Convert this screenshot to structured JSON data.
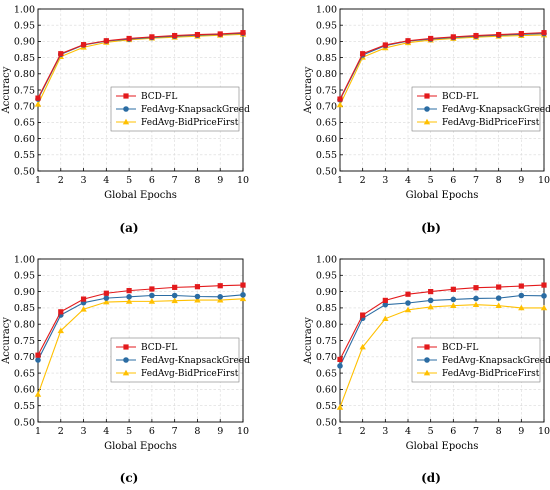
{
  "colors": {
    "BCD-FL": "#e31a1c",
    "FedAvg-KnapsackGreed": "#2b6ca3",
    "FedAvg-BidPriceFirst": "#ffc000"
  },
  "marker_shapes": {
    "BCD-FL": "square",
    "FedAvg-KnapsackGreed": "circle",
    "FedAvg-BidPriceFirst": "triangle"
  },
  "chart_data": [
    {
      "panel": "(a)",
      "type": "line",
      "xlabel": "Global Epochs",
      "ylabel": "Accuracy",
      "xlim": [
        1,
        10
      ],
      "ylim": [
        0.5,
        1.0
      ],
      "x": [
        1,
        2,
        3,
        4,
        5,
        6,
        7,
        8,
        9,
        10
      ],
      "x_ticks": [
        "1",
        "2",
        "3",
        "4",
        "5",
        "6",
        "7",
        "8",
        "9",
        "10"
      ],
      "y_ticks": [
        "0.50",
        "0.55",
        "0.60",
        "0.65",
        "0.70",
        "0.75",
        "0.80",
        "0.85",
        "0.90",
        "0.95",
        "1.00"
      ],
      "grid": true,
      "legend_position": "bottom-right",
      "series": [
        {
          "name": "BCD-FL",
          "values": [
            0.725,
            0.862,
            0.89,
            0.902,
            0.909,
            0.914,
            0.918,
            0.921,
            0.923,
            0.927
          ]
        },
        {
          "name": "FedAvg-KnapsackGreed",
          "values": [
            0.722,
            0.86,
            0.889,
            0.901,
            0.907,
            0.912,
            0.916,
            0.919,
            0.922,
            0.925
          ]
        },
        {
          "name": "FedAvg-BidPriceFirst",
          "values": [
            0.706,
            0.853,
            0.882,
            0.897,
            0.905,
            0.91,
            0.913,
            0.916,
            0.919,
            0.922
          ]
        }
      ]
    },
    {
      "panel": "(b)",
      "type": "line",
      "xlabel": "Global Epochs",
      "ylabel": "Accuracy",
      "xlim": [
        1,
        10
      ],
      "ylim": [
        0.5,
        1.0
      ],
      "x": [
        1,
        2,
        3,
        4,
        5,
        6,
        7,
        8,
        9,
        10
      ],
      "x_ticks": [
        "1",
        "2",
        "3",
        "4",
        "5",
        "6",
        "7",
        "8",
        "9",
        "10"
      ],
      "y_ticks": [
        "0.50",
        "0.55",
        "0.60",
        "0.65",
        "0.70",
        "0.75",
        "0.80",
        "0.85",
        "0.90",
        "0.95",
        "1.00"
      ],
      "grid": true,
      "legend_position": "bottom-right",
      "series": [
        {
          "name": "BCD-FL",
          "values": [
            0.722,
            0.862,
            0.889,
            0.902,
            0.909,
            0.914,
            0.918,
            0.921,
            0.924,
            0.927
          ]
        },
        {
          "name": "FedAvg-KnapsackGreed",
          "values": [
            0.72,
            0.858,
            0.887,
            0.901,
            0.907,
            0.912,
            0.916,
            0.919,
            0.922,
            0.924
          ]
        },
        {
          "name": "FedAvg-BidPriceFirst",
          "values": [
            0.704,
            0.851,
            0.88,
            0.896,
            0.904,
            0.909,
            0.913,
            0.916,
            0.918,
            0.92
          ]
        }
      ]
    },
    {
      "panel": "(c)",
      "type": "line",
      "xlabel": "Global Epochs",
      "ylabel": "Accuracy",
      "xlim": [
        1,
        10
      ],
      "ylim": [
        0.5,
        1.0
      ],
      "x": [
        1,
        2,
        3,
        4,
        5,
        6,
        7,
        8,
        9,
        10
      ],
      "x_ticks": [
        "1",
        "2",
        "3",
        "4",
        "5",
        "6",
        "7",
        "8",
        "9",
        "10"
      ],
      "y_ticks": [
        "0.50",
        "0.55",
        "0.60",
        "0.65",
        "0.70",
        "0.75",
        "0.80",
        "0.85",
        "0.90",
        "0.95",
        "1.00"
      ],
      "grid": true,
      "legend_position": "bottom-right",
      "series": [
        {
          "name": "BCD-FL",
          "values": [
            0.705,
            0.838,
            0.877,
            0.895,
            0.903,
            0.908,
            0.913,
            0.915,
            0.918,
            0.92
          ]
        },
        {
          "name": "FedAvg-KnapsackGreed",
          "values": [
            0.69,
            0.828,
            0.866,
            0.88,
            0.884,
            0.888,
            0.888,
            0.885,
            0.884,
            0.89
          ]
        },
        {
          "name": "FedAvg-BidPriceFirst",
          "values": [
            0.585,
            0.78,
            0.846,
            0.868,
            0.87,
            0.87,
            0.872,
            0.874,
            0.874,
            0.878
          ]
        }
      ]
    },
    {
      "panel": "(d)",
      "type": "line",
      "xlabel": "Global Epochs",
      "ylabel": "Accuracy",
      "xlim": [
        1,
        10
      ],
      "ylim": [
        0.5,
        1.0
      ],
      "x": [
        1,
        2,
        3,
        4,
        5,
        6,
        7,
        8,
        9,
        10
      ],
      "x_ticks": [
        "1",
        "2",
        "3",
        "4",
        "5",
        "6",
        "7",
        "8",
        "9",
        "10"
      ],
      "y_ticks": [
        "0.50",
        "0.55",
        "0.60",
        "0.65",
        "0.70",
        "0.75",
        "0.80",
        "0.85",
        "0.90",
        "0.95",
        "1.00"
      ],
      "grid": true,
      "legend_position": "bottom-right",
      "series": [
        {
          "name": "BCD-FL",
          "values": [
            0.692,
            0.828,
            0.873,
            0.892,
            0.9,
            0.907,
            0.912,
            0.914,
            0.917,
            0.92
          ]
        },
        {
          "name": "FedAvg-KnapsackGreed",
          "values": [
            0.672,
            0.818,
            0.86,
            0.865,
            0.873,
            0.876,
            0.879,
            0.88,
            0.888,
            0.887
          ]
        },
        {
          "name": "FedAvg-BidPriceFirst",
          "values": [
            0.545,
            0.73,
            0.817,
            0.844,
            0.853,
            0.857,
            0.86,
            0.857,
            0.85,
            0.85
          ]
        }
      ]
    }
  ]
}
